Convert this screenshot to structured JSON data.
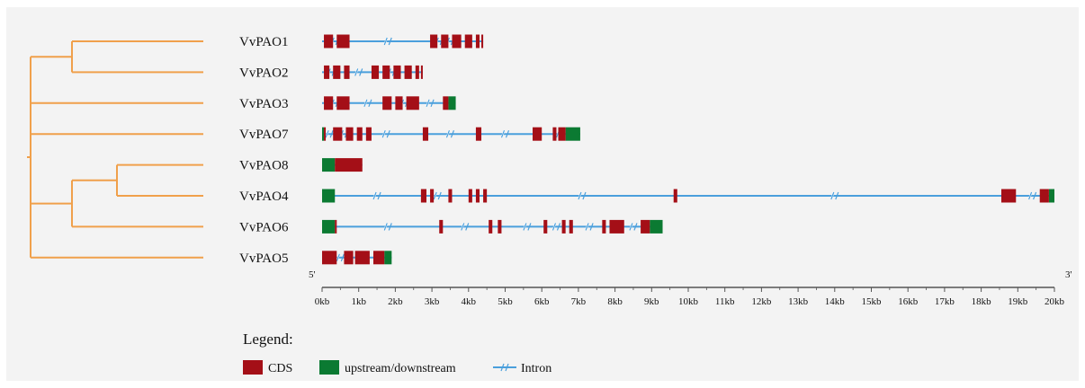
{
  "colors": {
    "cds": "#a40f17",
    "utr": "#0b7a32",
    "intron": "#4a9fdc",
    "tree": "#f0a04b",
    "axis": "#555555"
  },
  "axis": {
    "start_label": "5'",
    "end_label": "3'",
    "max_kb": 20,
    "tick_labels": [
      "0kb",
      "1kb",
      "2kb",
      "3kb",
      "4kb",
      "5kb",
      "6kb",
      "7kb",
      "8kb",
      "9kb",
      "10kb",
      "11kb",
      "12kb",
      "13kb",
      "14kb",
      "15kb",
      "16kb",
      "17kb",
      "18kb",
      "19kb",
      "20kb"
    ]
  },
  "tree": {
    "newick": "((VvPAO1,VvPAO2),VvPAO3,VvPAO7,((VvPAO8,VvPAO4),VvPAO6),VvPAO5)"
  },
  "genes": [
    {
      "name": "VvPAO1",
      "length": 4.4,
      "cds": [
        [
          0.05,
          0.3
        ],
        [
          0.4,
          0.75
        ],
        [
          2.95,
          3.15
        ],
        [
          3.25,
          3.45
        ],
        [
          3.55,
          3.8
        ],
        [
          3.9,
          4.1
        ],
        [
          4.2,
          4.3
        ],
        [
          4.35,
          4.4
        ]
      ],
      "utr": [],
      "breaks": [
        0.35,
        1.8,
        3.2,
        3.5
      ]
    },
    {
      "name": "VvPAO2",
      "length": 2.75,
      "cds": [
        [
          0.05,
          0.2
        ],
        [
          0.3,
          0.5
        ],
        [
          0.6,
          0.75
        ],
        [
          1.35,
          1.55
        ],
        [
          1.65,
          1.85
        ],
        [
          1.95,
          2.15
        ],
        [
          2.25,
          2.45
        ],
        [
          2.55,
          2.65
        ],
        [
          2.7,
          2.75
        ]
      ],
      "utr": [],
      "breaks": [
        0.25,
        1.0,
        1.9
      ]
    },
    {
      "name": "VvPAO3",
      "length": 3.65,
      "cds": [
        [
          0.05,
          0.3
        ],
        [
          0.4,
          0.75
        ],
        [
          1.65,
          1.9
        ],
        [
          2.0,
          2.2
        ],
        [
          2.3,
          2.65
        ],
        [
          3.3,
          3.45
        ]
      ],
      "utr": [
        [
          3.45,
          3.65
        ]
      ],
      "breaks": [
        0.35,
        1.25,
        2.25,
        2.95
      ]
    },
    {
      "name": "VvPAO7",
      "length": 7.05,
      "cds": [
        [
          0.05,
          0.1
        ],
        [
          0.3,
          0.55
        ],
        [
          0.65,
          0.85
        ],
        [
          0.95,
          1.1
        ],
        [
          1.2,
          1.35
        ],
        [
          2.75,
          2.9
        ],
        [
          4.2,
          4.35
        ],
        [
          5.75,
          6.0
        ],
        [
          6.3,
          6.4
        ],
        [
          6.45,
          6.65
        ]
      ],
      "utr": [
        [
          0.0,
          0.05
        ],
        [
          6.65,
          7.05
        ]
      ],
      "breaks": [
        0.2,
        0.6,
        1.75,
        3.5,
        5.0,
        6.5
      ]
    },
    {
      "name": "VvPAO8",
      "length": 1.1,
      "cds": [
        [
          0.35,
          1.1
        ]
      ],
      "utr": [
        [
          0.0,
          0.35
        ]
      ],
      "breaks": []
    },
    {
      "name": "VvPAO4",
      "length": 20.0,
      "cds": [
        [
          2.7,
          2.85
        ],
        [
          2.95,
          3.05
        ],
        [
          3.45,
          3.55
        ],
        [
          4.0,
          4.1
        ],
        [
          4.2,
          4.3
        ],
        [
          4.4,
          4.5
        ],
        [
          9.6,
          9.7
        ],
        [
          18.55,
          18.95
        ],
        [
          19.6,
          19.85
        ]
      ],
      "utr": [
        [
          0.0,
          0.35
        ],
        [
          19.85,
          20.0
        ]
      ],
      "breaks": [
        1.5,
        3.15,
        7.1,
        14.0,
        19.4
      ]
    },
    {
      "name": "VvPAO6",
      "length": 9.3,
      "cds": [
        [
          0.35,
          0.4
        ],
        [
          3.2,
          3.3
        ],
        [
          4.55,
          4.65
        ],
        [
          4.8,
          4.9
        ],
        [
          6.05,
          6.15
        ],
        [
          6.55,
          6.65
        ],
        [
          6.75,
          6.85
        ],
        [
          7.65,
          7.75
        ],
        [
          7.85,
          8.25
        ],
        [
          8.7,
          8.95
        ]
      ],
      "utr": [
        [
          0.0,
          0.35
        ],
        [
          8.95,
          9.3
        ]
      ],
      "breaks": [
        1.8,
        3.9,
        5.6,
        6.4,
        7.3,
        8.5
      ]
    },
    {
      "name": "VvPAO5",
      "length": 1.9,
      "cds": [
        [
          0.0,
          0.4
        ],
        [
          0.6,
          0.85
        ],
        [
          0.9,
          1.3
        ],
        [
          1.4,
          1.7
        ]
      ],
      "utr": [
        [
          1.7,
          1.9
        ]
      ],
      "breaks": [
        0.5
      ]
    }
  ],
  "legend": {
    "title": "Legend:",
    "items": [
      {
        "key": "cds",
        "label": "CDS"
      },
      {
        "key": "utr",
        "label": "upstream/downstream"
      },
      {
        "key": "intron",
        "label": "Intron"
      }
    ]
  }
}
